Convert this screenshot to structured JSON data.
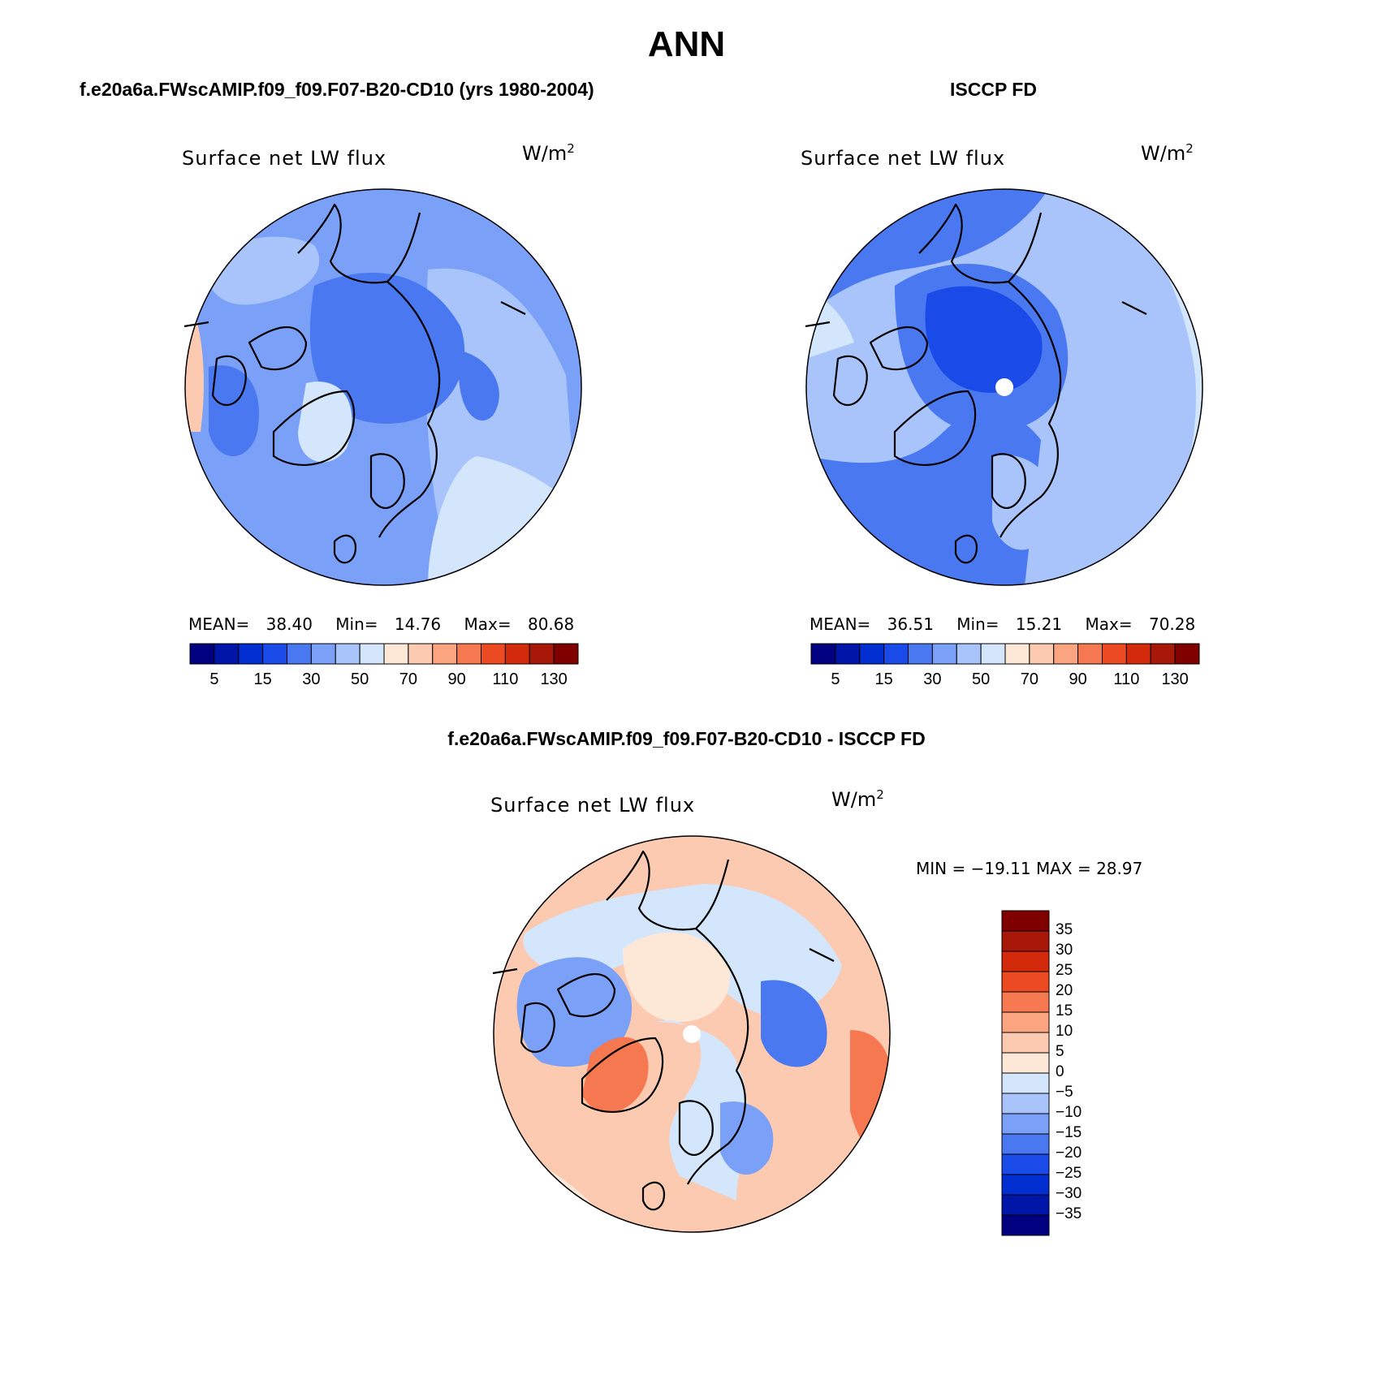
{
  "title": "ANN",
  "panels": [
    {
      "title": "f.e20a6a.FWscAMIP.f09_f09.F07-B20-CD10 (yrs 1980-2004)",
      "variable": "Surface net LW flux",
      "units": "W/m",
      "units_exp": "2",
      "stats": {
        "mean_label": "MEAN=",
        "mean": "38.40",
        "min_label": "Min=",
        "min": "14.76",
        "max_label": "Max=",
        "max": "80.68"
      }
    },
    {
      "title": "ISCCP FD",
      "variable": "Surface net LW flux",
      "units": "W/m",
      "units_exp": "2",
      "stats": {
        "mean_label": "MEAN=",
        "mean": "36.51",
        "min_label": "Min=",
        "min": "15.21",
        "max_label": "Max=",
        "max": "70.28"
      }
    },
    {
      "title": "f.e20a6a.FWscAMIP.f09_f09.F07-B20-CD10 - ISCCP FD",
      "variable": "Surface net LW flux",
      "units": "W/m",
      "units_exp": "2",
      "stats_text": "MIN = −19.11 MAX =   28.97"
    }
  ],
  "chart_data": [
    {
      "type": "heatmap",
      "projection": "north-polar-stereographic",
      "field": "model",
      "colorbar": {
        "orientation": "horizontal",
        "tick_labels": [
          "5",
          "15",
          "30",
          "50",
          "70",
          "90",
          "110",
          "130"
        ],
        "colors": [
          "#000080",
          "#0016a8",
          "#002ed0",
          "#1a4ae8",
          "#4a78f0",
          "#7aa0f8",
          "#a8c4fa",
          "#d4e6fc",
          "#fde8d8",
          "#fccab0",
          "#faa480",
          "#f67850",
          "#ec4a22",
          "#d42a0c",
          "#a81808",
          "#800000"
        ]
      }
    },
    {
      "type": "heatmap",
      "projection": "north-polar-stereographic",
      "field": "observations",
      "colorbar": {
        "orientation": "horizontal",
        "tick_labels": [
          "5",
          "15",
          "30",
          "50",
          "70",
          "90",
          "110",
          "130"
        ],
        "colors": [
          "#000080",
          "#0016a8",
          "#002ed0",
          "#1a4ae8",
          "#4a78f0",
          "#7aa0f8",
          "#a8c4fa",
          "#d4e6fc",
          "#fde8d8",
          "#fccab0",
          "#faa480",
          "#f67850",
          "#ec4a22",
          "#d42a0c",
          "#a81808",
          "#800000"
        ]
      }
    },
    {
      "type": "heatmap",
      "projection": "north-polar-stereographic",
      "field": "difference",
      "colorbar": {
        "orientation": "vertical",
        "tick_labels": [
          "35",
          "30",
          "25",
          "20",
          "15",
          "10",
          "5",
          "0",
          "−5",
          "−10",
          "−15",
          "−20",
          "−25",
          "−30",
          "−35"
        ],
        "colors": [
          "#800000",
          "#a81808",
          "#d42a0c",
          "#ec4a22",
          "#f67850",
          "#faa480",
          "#fccab0",
          "#fde8d8",
          "#d4e6fc",
          "#a8c4fa",
          "#7aa0f8",
          "#4a78f0",
          "#1a4ae8",
          "#002ed0",
          "#0016a8",
          "#000080"
        ]
      }
    }
  ]
}
